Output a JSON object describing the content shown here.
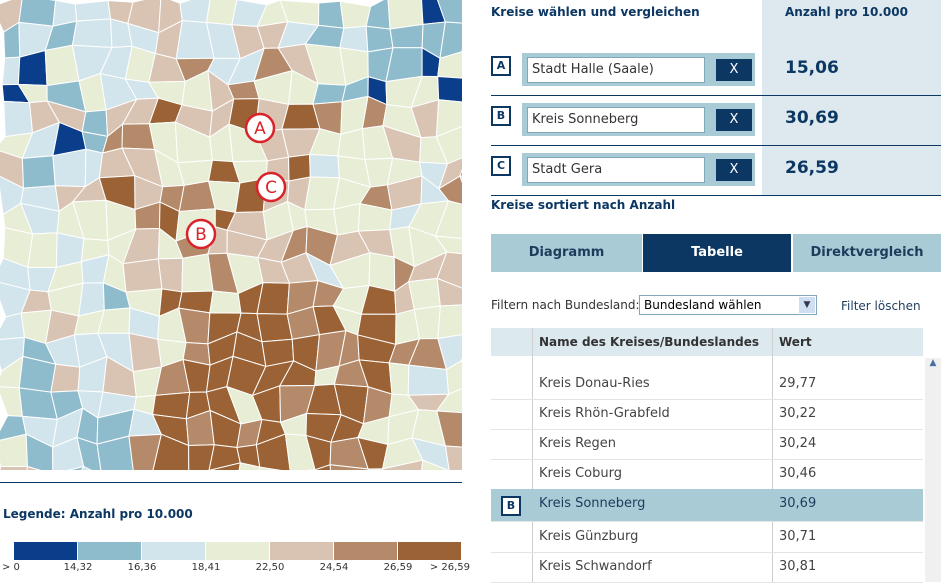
{
  "header": {
    "title": "Kreise wählen und vergleichen",
    "value_heading": "Anzahl pro 10.000"
  },
  "selections": [
    {
      "letter": "A",
      "name": "Stadt Halle (Saale)",
      "button": "X",
      "value": "15,06"
    },
    {
      "letter": "B",
      "name": "Kreis Sonneberg",
      "button": "X",
      "value": "30,69"
    },
    {
      "letter": "C",
      "name": "Stadt Gera",
      "button": "X",
      "value": "26,59"
    }
  ],
  "sorted_heading": "Kreise sortiert nach Anzahl",
  "tabs": [
    "Diagramm",
    "Tabelle",
    "Direktvergleich"
  ],
  "active_tab": 1,
  "filter": {
    "label": "Filtern nach Bundesland:",
    "select": "Bundesland wählen",
    "clear": "Filter löschen"
  },
  "table": {
    "headers": [
      "Name des Kreises/Bundeslandes",
      "Wert"
    ],
    "rows": [
      {
        "marker": null,
        "name": "Kreis Donau-Ries",
        "value": "29,77"
      },
      {
        "marker": null,
        "name": "Kreis Rhön-Grabfeld",
        "value": "30,22"
      },
      {
        "marker": null,
        "name": "Kreis Regen",
        "value": "30,24"
      },
      {
        "marker": null,
        "name": "Kreis Coburg",
        "value": "30,46"
      },
      {
        "marker": "B",
        "name": "Kreis Sonneberg",
        "value": "30,69"
      },
      {
        "marker": null,
        "name": "Kreis Günzburg",
        "value": "30,71"
      },
      {
        "marker": null,
        "name": "Kreis Schwandorf",
        "value": "30,81"
      }
    ]
  },
  "legend": {
    "title": "Legende: Anzahl pro 10.000",
    "colors": [
      "#0a3d8a",
      "#8fbccc",
      "#d2e5ec",
      "#e8edd5",
      "#d9c3b3",
      "#b48a6a",
      "#9a6235"
    ],
    "labels": [
      "> 0",
      "14,32",
      "16,36",
      "18,41",
      "22,50",
      "24,54",
      "26,59",
      "> 26,59"
    ]
  }
}
